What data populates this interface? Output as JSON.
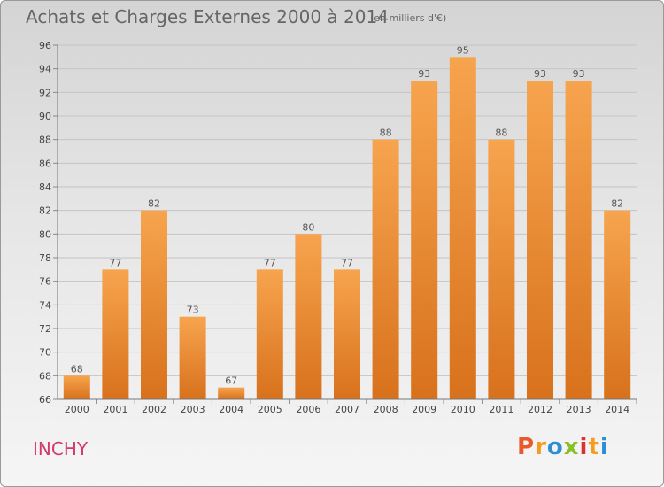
{
  "title": "Achats et Charges Externes 2000 à 2014",
  "subtitle": "(en milliers d'€)",
  "location": "INCHY",
  "logo": {
    "text": "Proxiti",
    "colors": [
      "#e8592b",
      "#f39c1f",
      "#2d8ed6",
      "#8bbf2a",
      "#d9332f",
      "#f39c1f",
      "#2d8ed6"
    ]
  },
  "colors": {
    "bar_top": "#f7a44e",
    "bar_bottom": "#d8711c",
    "location_text": "#d23a6b"
  },
  "chart_data": {
    "type": "bar",
    "title": "Achats et Charges Externes 2000 à 2014",
    "subtitle": "(en milliers d'€)",
    "categories": [
      "2000",
      "2001",
      "2002",
      "2003",
      "2004",
      "2005",
      "2006",
      "2007",
      "2008",
      "2009",
      "2010",
      "2011",
      "2012",
      "2013",
      "2014"
    ],
    "values": [
      68,
      77,
      82,
      73,
      67,
      77,
      80,
      77,
      88,
      93,
      95,
      88,
      93,
      93,
      82
    ],
    "ylim": [
      66,
      96
    ],
    "yticks": [
      66,
      68,
      70,
      72,
      74,
      76,
      78,
      80,
      82,
      84,
      86,
      88,
      90,
      92,
      94,
      96
    ],
    "grid": true,
    "xlabel": "",
    "ylabel": ""
  }
}
